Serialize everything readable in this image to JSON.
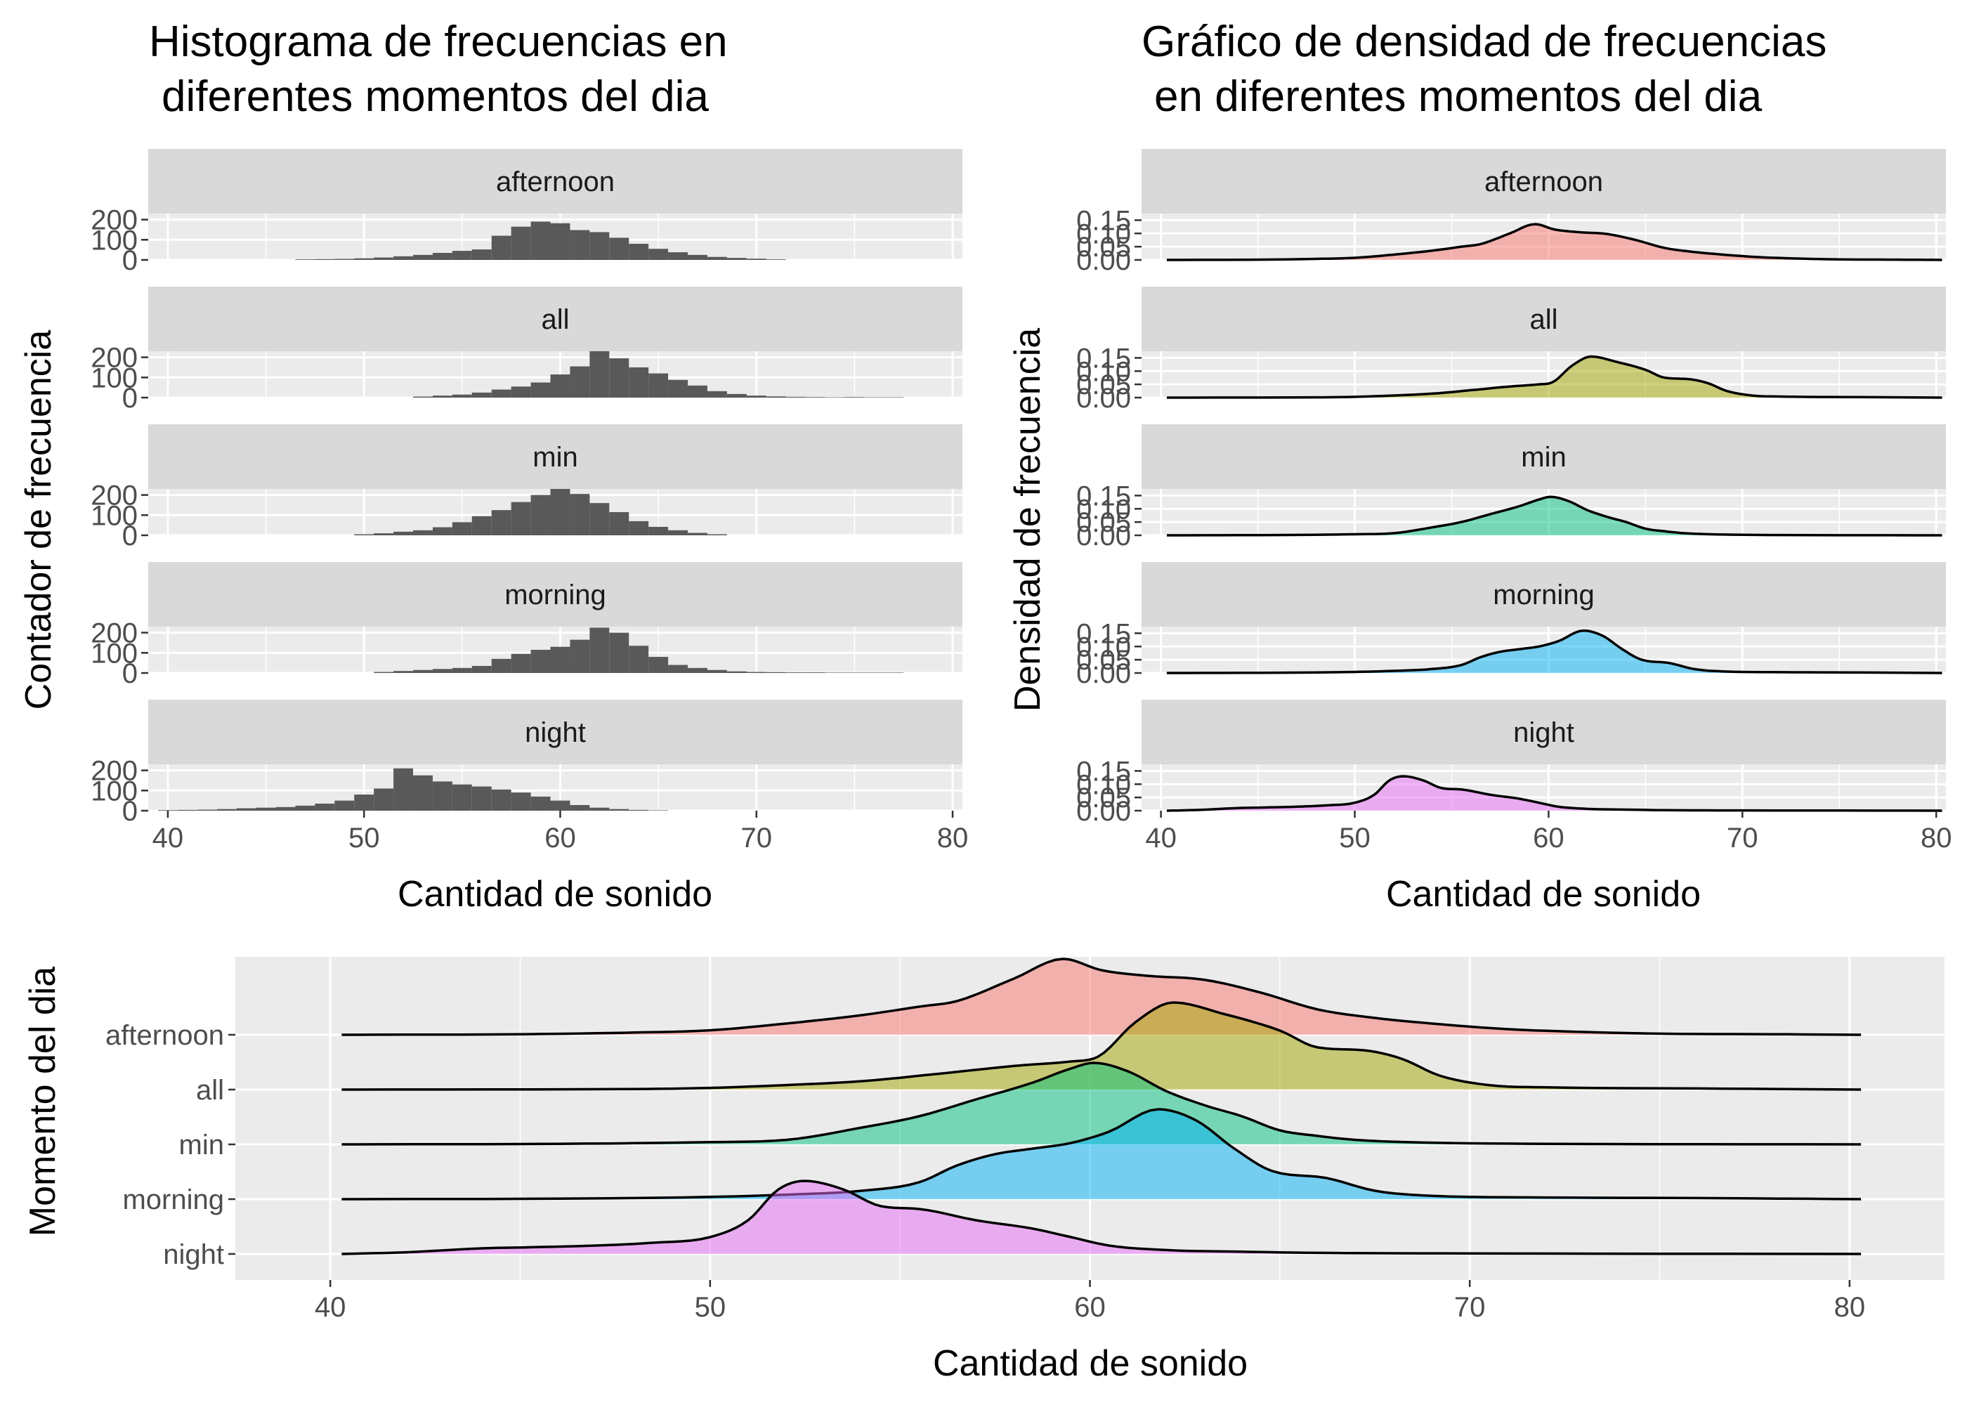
{
  "colors": {
    "panel_bg": "#ebebeb",
    "strip_bg": "#d9d9d9",
    "grid_major": "#ffffff",
    "bar_fill": "#595959",
    "group_colors": {
      "afternoon": "#f8766d",
      "all": "#a3a500",
      "min": "#00bf7d",
      "morning": "#00b0f6",
      "night": "#e76bf3"
    }
  },
  "panels": {
    "histogram": {
      "title_lines": [
        "Histograma de frecuencias en",
        "diferentes momentos del dia"
      ],
      "xlabel": "Cantidad de sonido",
      "ylabel": "Contador de frecuencia"
    },
    "density": {
      "title_lines": [
        "Gráfico de densidad de frecuencias",
        "en diferentes momentos del dia"
      ],
      "xlabel": "Cantidad de sonido",
      "ylabel": "Densidad de frecuencia"
    },
    "ridges": {
      "xlabel": "Cantidad de sonido",
      "ylabel": "Momento del dia"
    }
  },
  "chart_data": [
    {
      "type": "bar",
      "chart": "faceted histogram",
      "facets": [
        "afternoon",
        "all",
        "min",
        "morning",
        "night"
      ],
      "bin_width": 1,
      "xlim": [
        39,
        80.5
      ],
      "ylim": [
        0,
        230
      ],
      "x_ticks": [
        40,
        50,
        60,
        70,
        80
      ],
      "y_ticks": [
        0,
        100,
        200
      ],
      "x_tick_labels": [
        "40",
        "50",
        "60",
        "70",
        "80"
      ],
      "y_tick_labels": [
        "0",
        "100",
        "200"
      ],
      "series": [
        {
          "name": "afternoon",
          "bins": [
            [
              47,
              3
            ],
            [
              48,
              4
            ],
            [
              49,
              5
            ],
            [
              50,
              8
            ],
            [
              51,
              12
            ],
            [
              52,
              18
            ],
            [
              53,
              25
            ],
            [
              54,
              35
            ],
            [
              55,
              45
            ],
            [
              56,
              52
            ],
            [
              57,
              120
            ],
            [
              58,
              165
            ],
            [
              59,
              190
            ],
            [
              60,
              182
            ],
            [
              61,
              148
            ],
            [
              62,
              138
            ],
            [
              63,
              110
            ],
            [
              64,
              80
            ],
            [
              65,
              55
            ],
            [
              66,
              38
            ],
            [
              67,
              25
            ],
            [
              68,
              15
            ],
            [
              69,
              10
            ],
            [
              70,
              6
            ],
            [
              71,
              3
            ]
          ]
        },
        {
          "name": "all",
          "bins": [
            [
              53,
              5
            ],
            [
              54,
              10
            ],
            [
              55,
              15
            ],
            [
              56,
              25
            ],
            [
              57,
              40
            ],
            [
              58,
              55
            ],
            [
              59,
              75
            ],
            [
              60,
              115
            ],
            [
              61,
              155
            ],
            [
              62,
              230
            ],
            [
              63,
              195
            ],
            [
              64,
              150
            ],
            [
              65,
              120
            ],
            [
              66,
              88
            ],
            [
              67,
              60
            ],
            [
              68,
              32
            ],
            [
              69,
              18
            ],
            [
              70,
              10
            ],
            [
              71,
              6
            ],
            [
              72,
              4
            ],
            [
              73,
              3
            ],
            [
              74,
              2
            ],
            [
              75,
              3
            ],
            [
              76,
              2
            ],
            [
              77,
              2
            ]
          ]
        },
        {
          "name": "min",
          "bins": [
            [
              50,
              5
            ],
            [
              51,
              10
            ],
            [
              52,
              18
            ],
            [
              53,
              25
            ],
            [
              54,
              40
            ],
            [
              55,
              65
            ],
            [
              56,
              95
            ],
            [
              57,
              125
            ],
            [
              58,
              165
            ],
            [
              59,
              200
            ],
            [
              60,
              240
            ],
            [
              61,
              205
            ],
            [
              62,
              160
            ],
            [
              63,
              115
            ],
            [
              64,
              70
            ],
            [
              65,
              42
            ],
            [
              66,
              25
            ],
            [
              67,
              12
            ],
            [
              68,
              5
            ]
          ]
        },
        {
          "name": "morning",
          "bins": [
            [
              51,
              5
            ],
            [
              52,
              10
            ],
            [
              53,
              15
            ],
            [
              54,
              20
            ],
            [
              55,
              25
            ],
            [
              56,
              35
            ],
            [
              57,
              70
            ],
            [
              58,
              95
            ],
            [
              59,
              115
            ],
            [
              60,
              130
            ],
            [
              61,
              165
            ],
            [
              62,
              225
            ],
            [
              63,
              200
            ],
            [
              64,
              135
            ],
            [
              65,
              80
            ],
            [
              66,
              40
            ],
            [
              67,
              25
            ],
            [
              68,
              15
            ],
            [
              69,
              8
            ],
            [
              70,
              5
            ],
            [
              71,
              4
            ],
            [
              72,
              3
            ],
            [
              73,
              3
            ],
            [
              74,
              2
            ],
            [
              75,
              2
            ],
            [
              76,
              2
            ],
            [
              77,
              2
            ]
          ]
        },
        {
          "name": "night",
          "bins": [
            [
              40,
              3
            ],
            [
              41,
              4
            ],
            [
              42,
              5
            ],
            [
              43,
              8
            ],
            [
              44,
              12
            ],
            [
              45,
              15
            ],
            [
              46,
              18
            ],
            [
              47,
              25
            ],
            [
              48,
              35
            ],
            [
              49,
              50
            ],
            [
              50,
              80
            ],
            [
              51,
              110
            ],
            [
              52,
              210
            ],
            [
              53,
              175
            ],
            [
              54,
              145
            ],
            [
              55,
              130
            ],
            [
              56,
              120
            ],
            [
              57,
              105
            ],
            [
              58,
              90
            ],
            [
              59,
              70
            ],
            [
              60,
              50
            ],
            [
              61,
              28
            ],
            [
              62,
              15
            ],
            [
              63,
              8
            ],
            [
              64,
              4
            ],
            [
              65,
              2
            ]
          ]
        }
      ]
    },
    {
      "type": "area",
      "chart": "faceted density",
      "facets": [
        "afternoon",
        "all",
        "min",
        "morning",
        "night"
      ],
      "xlim": [
        39,
        80.5
      ],
      "ylim": [
        0,
        0.175
      ],
      "x_ticks": [
        40,
        50,
        60,
        70,
        80
      ],
      "y_ticks": [
        0,
        0.05,
        0.1,
        0.15
      ],
      "x_tick_labels": [
        "40",
        "50",
        "60",
        "70",
        "80"
      ],
      "y_tick_labels": [
        "0.00",
        "0.05",
        "0.10",
        "0.15"
      ],
      "series": [
        {
          "name": "afternoon",
          "points": [
            [
              40.3,
              0
            ],
            [
              45,
              0.001
            ],
            [
              48,
              0.004
            ],
            [
              50,
              0.008
            ],
            [
              52,
              0.02
            ],
            [
              54,
              0.035
            ],
            [
              55.5,
              0.05
            ],
            [
              56.5,
              0.06
            ],
            [
              58,
              0.1
            ],
            [
              59.3,
              0.135
            ],
            [
              60.3,
              0.115
            ],
            [
              61.5,
              0.105
            ],
            [
              63,
              0.098
            ],
            [
              64.5,
              0.075
            ],
            [
              66,
              0.045
            ],
            [
              67.5,
              0.03
            ],
            [
              69,
              0.02
            ],
            [
              71,
              0.01
            ],
            [
              73,
              0.005
            ],
            [
              75,
              0.002
            ],
            [
              78,
              0.001
            ],
            [
              80.3,
              0
            ]
          ]
        },
        {
          "name": "all",
          "points": [
            [
              40.3,
              0
            ],
            [
              48,
              0.001
            ],
            [
              50,
              0.003
            ],
            [
              52,
              0.008
            ],
            [
              54,
              0.015
            ],
            [
              56,
              0.028
            ],
            [
              58,
              0.042
            ],
            [
              59.5,
              0.05
            ],
            [
              60.2,
              0.058
            ],
            [
              61.2,
              0.12
            ],
            [
              62.2,
              0.155
            ],
            [
              63.5,
              0.135
            ],
            [
              65,
              0.105
            ],
            [
              66,
              0.075
            ],
            [
              67.2,
              0.07
            ],
            [
              68.2,
              0.055
            ],
            [
              69.2,
              0.025
            ],
            [
              70.5,
              0.008
            ],
            [
              72,
              0.004
            ],
            [
              76,
              0.002
            ],
            [
              80.3,
              0
            ]
          ]
        },
        {
          "name": "min",
          "points": [
            [
              40.3,
              0
            ],
            [
              46,
              0.001
            ],
            [
              50,
              0.004
            ],
            [
              52,
              0.008
            ],
            [
              54,
              0.03
            ],
            [
              55.5,
              0.05
            ],
            [
              57,
              0.08
            ],
            [
              58.5,
              0.11
            ],
            [
              59.5,
              0.135
            ],
            [
              60.1,
              0.145
            ],
            [
              61,
              0.13
            ],
            [
              62,
              0.095
            ],
            [
              63,
              0.07
            ],
            [
              64,
              0.05
            ],
            [
              65,
              0.025
            ],
            [
              66,
              0.015
            ],
            [
              67,
              0.008
            ],
            [
              69,
              0.003
            ],
            [
              72,
              0.001
            ],
            [
              80.3,
              0
            ]
          ]
        },
        {
          "name": "morning",
          "points": [
            [
              40.3,
              0
            ],
            [
              46,
              0.001
            ],
            [
              50,
              0.004
            ],
            [
              52,
              0.008
            ],
            [
              54,
              0.015
            ],
            [
              55.5,
              0.03
            ],
            [
              56.5,
              0.06
            ],
            [
              57.5,
              0.08
            ],
            [
              58.5,
              0.09
            ],
            [
              59.5,
              0.1
            ],
            [
              60.5,
              0.12
            ],
            [
              61.8,
              0.16
            ],
            [
              62.8,
              0.14
            ],
            [
              63.8,
              0.09
            ],
            [
              64.8,
              0.05
            ],
            [
              66.2,
              0.038
            ],
            [
              67.5,
              0.015
            ],
            [
              69,
              0.006
            ],
            [
              72,
              0.003
            ],
            [
              76,
              0.002
            ],
            [
              80.3,
              0
            ]
          ]
        },
        {
          "name": "night",
          "points": [
            [
              40.3,
              0
            ],
            [
              42,
              0.003
            ],
            [
              44,
              0.01
            ],
            [
              45.3,
              0.012
            ],
            [
              47,
              0.015
            ],
            [
              48.5,
              0.02
            ],
            [
              50,
              0.03
            ],
            [
              51,
              0.06
            ],
            [
              51.8,
              0.115
            ],
            [
              52.5,
              0.13
            ],
            [
              53.5,
              0.115
            ],
            [
              54.5,
              0.085
            ],
            [
              55.5,
              0.08
            ],
            [
              57,
              0.06
            ],
            [
              58.5,
              0.045
            ],
            [
              59.5,
              0.03
            ],
            [
              60.5,
              0.015
            ],
            [
              62,
              0.007
            ],
            [
              64,
              0.004
            ],
            [
              66,
              0.002
            ],
            [
              70,
              0.001
            ],
            [
              80.3,
              0
            ]
          ]
        }
      ]
    },
    {
      "type": "area",
      "chart": "ridgeline",
      "categories": [
        "afternoon",
        "all",
        "min",
        "morning",
        "night"
      ],
      "xlim": [
        37.5,
        82.5
      ],
      "x_ticks": [
        40,
        50,
        60,
        70,
        80
      ],
      "x_tick_labels": [
        "40",
        "50",
        "60",
        "70",
        "80"
      ],
      "density_scale_note": "same density curves as the faceted density panel, overlapping ridges"
    }
  ]
}
